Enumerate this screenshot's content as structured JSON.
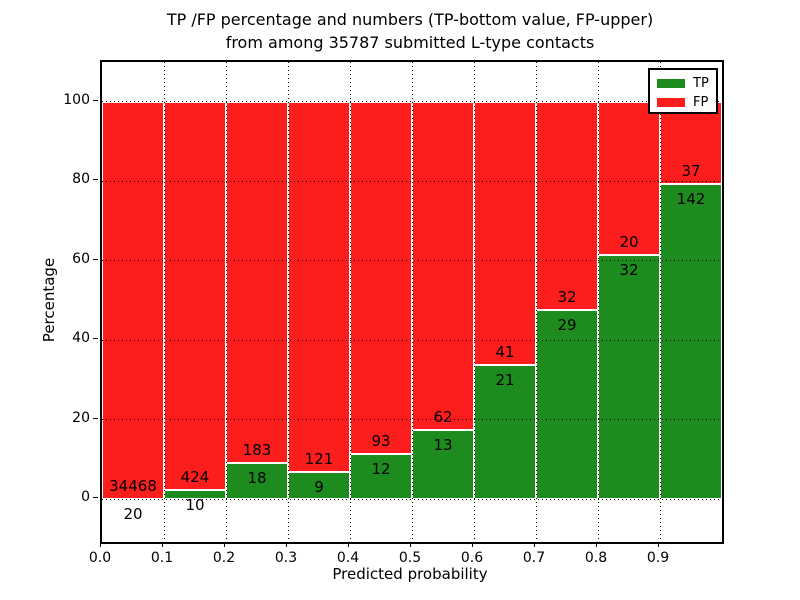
{
  "chart_data": {
    "type": "bar",
    "stacked": true,
    "title": "TP /FP percentage and numbers (TP-bottom value, FP-upper)",
    "subtitle": "from among 35787 submitted L-type contacts",
    "total_submitted": 35787,
    "xlabel": "Predicted probability",
    "ylabel": "Percentage",
    "xlim": [
      0.0,
      1.0
    ],
    "ylim": [
      -10.8,
      110
    ],
    "xticks": [
      "0.0",
      "0.1",
      "0.2",
      "0.3",
      "0.4",
      "0.5",
      "0.6",
      "0.7",
      "0.8",
      "0.9"
    ],
    "xtick_values": [
      0.0,
      0.1,
      0.2,
      0.3,
      0.4,
      0.5,
      0.6,
      0.7,
      0.8,
      0.9
    ],
    "yticks": [
      "0",
      "20",
      "40",
      "60",
      "80",
      "100"
    ],
    "ytick_values": [
      0,
      20,
      40,
      60,
      80,
      100
    ],
    "grid": "dotted-black-over-bars",
    "bin_left_edges": [
      0.0,
      0.1,
      0.2,
      0.3,
      0.4,
      0.5,
      0.6,
      0.7,
      0.8,
      0.9
    ],
    "bin_width": 0.1,
    "annotation_note": "TP count printed below segment boundary, FP count printed above it",
    "series": [
      {
        "name": "TP",
        "color": "#1e8b1e",
        "counts": [
          20,
          10,
          18,
          9,
          12,
          13,
          21,
          29,
          32,
          142
        ],
        "percent": [
          0.06,
          2.3,
          8.96,
          6.92,
          11.43,
          17.33,
          33.87,
          47.54,
          61.54,
          79.33
        ]
      },
      {
        "name": "FP",
        "color": "#fc1d1d",
        "counts": [
          34468,
          424,
          183,
          121,
          93,
          62,
          41,
          32,
          20,
          37
        ],
        "percent": [
          99.94,
          97.7,
          91.04,
          93.08,
          88.57,
          82.67,
          66.13,
          52.46,
          38.46,
          20.67
        ]
      }
    ],
    "legend": {
      "position": "upper right",
      "entries": [
        "TP",
        "FP"
      ]
    }
  }
}
